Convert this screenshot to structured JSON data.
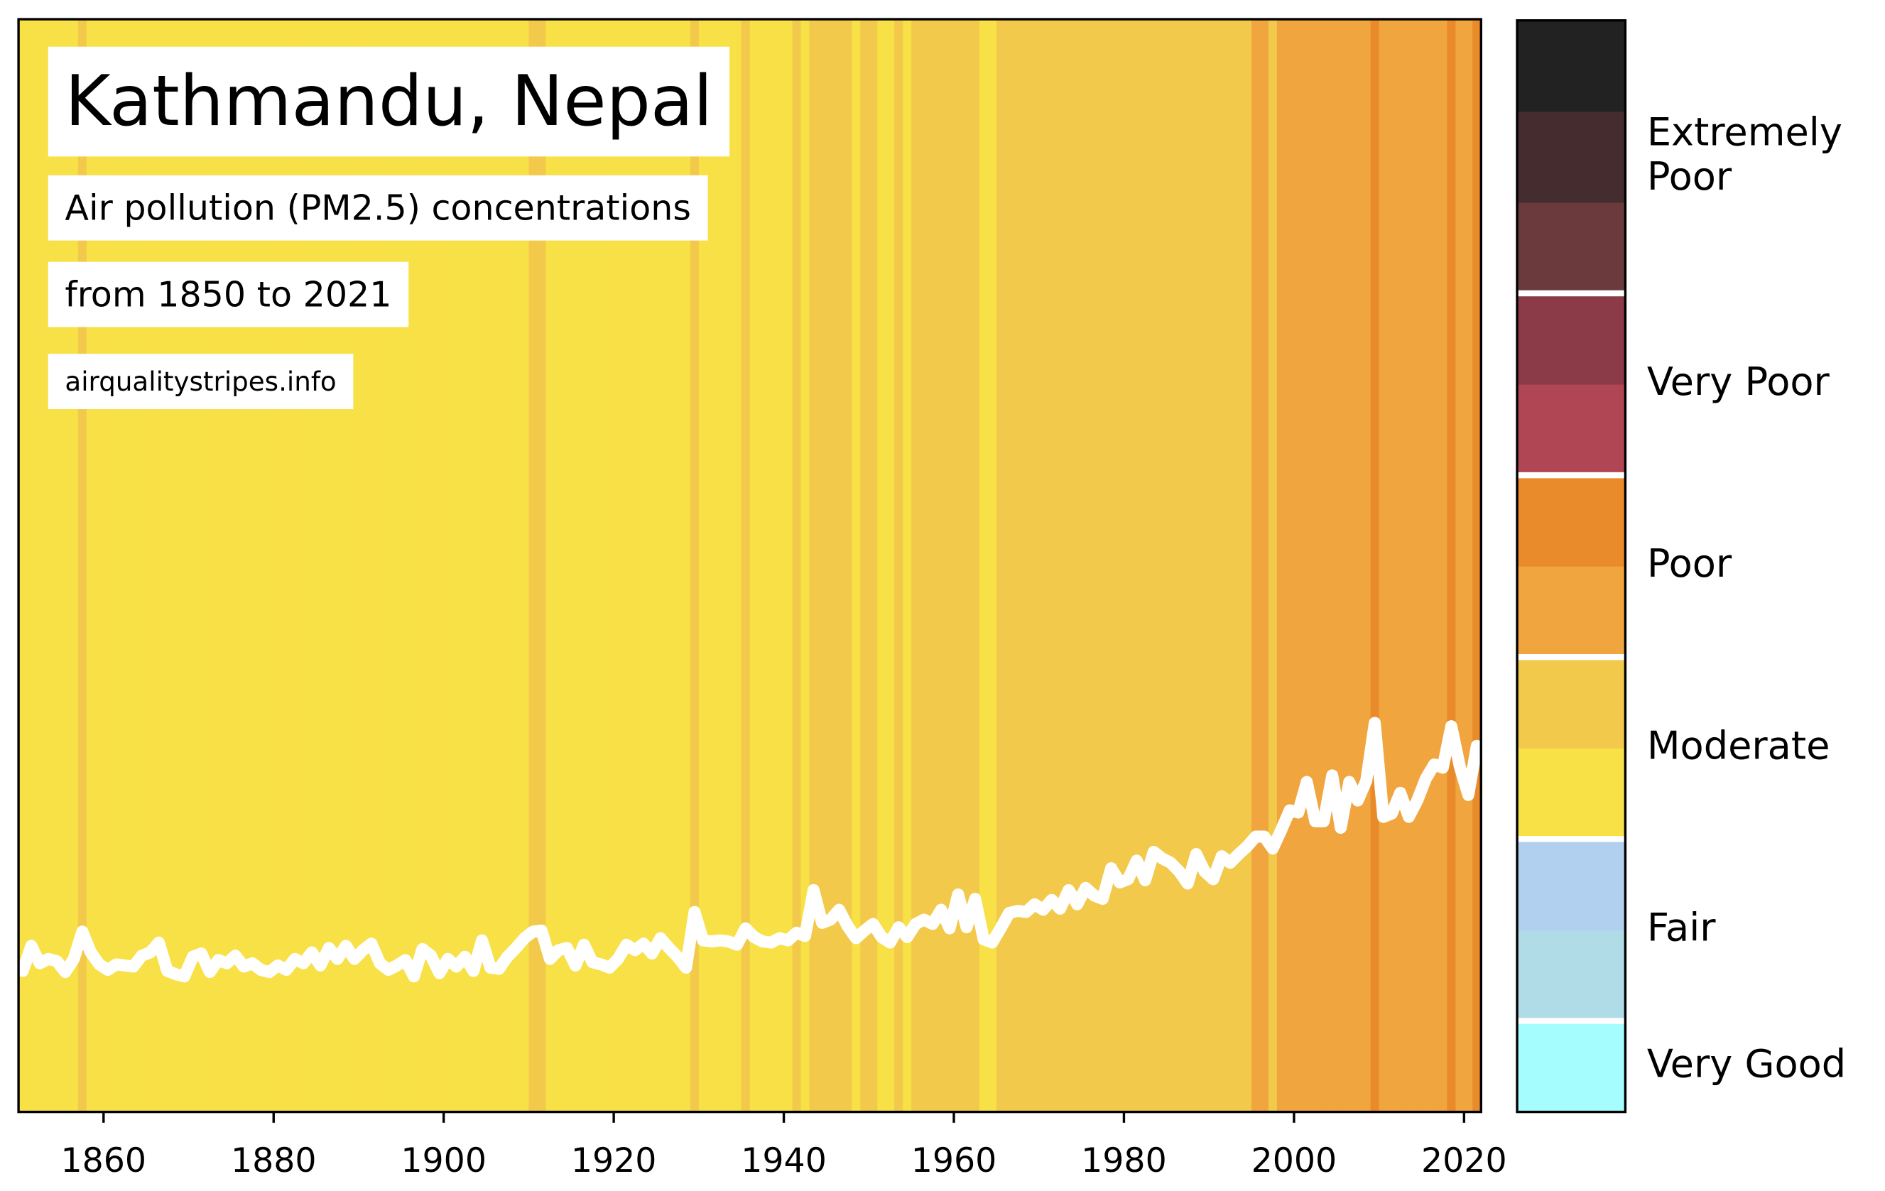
{
  "chart_data": {
    "type": "stripes",
    "title": "Kathmandu, Nepal",
    "subtitle": "Air pollution (PM2.5) concentrations",
    "period": "from 1850 to 2021",
    "source": "airqualitystripes.info",
    "x": [
      1850,
      1851,
      1852,
      1853,
      1854,
      1855,
      1856,
      1857,
      1858,
      1859,
      1860,
      1861,
      1862,
      1863,
      1864,
      1865,
      1866,
      1867,
      1868,
      1869,
      1870,
      1871,
      1872,
      1873,
      1874,
      1875,
      1876,
      1877,
      1878,
      1879,
      1880,
      1881,
      1882,
      1883,
      1884,
      1885,
      1886,
      1887,
      1888,
      1889,
      1890,
      1891,
      1892,
      1893,
      1894,
      1895,
      1896,
      1897,
      1898,
      1899,
      1900,
      1901,
      1902,
      1903,
      1904,
      1905,
      1906,
      1907,
      1908,
      1909,
      1910,
      1911,
      1912,
      1913,
      1914,
      1915,
      1916,
      1917,
      1918,
      1919,
      1920,
      1921,
      1922,
      1923,
      1924,
      1925,
      1926,
      1927,
      1928,
      1929,
      1930,
      1931,
      1932,
      1933,
      1934,
      1935,
      1936,
      1937,
      1938,
      1939,
      1940,
      1941,
      1942,
      1943,
      1944,
      1945,
      1946,
      1947,
      1948,
      1949,
      1950,
      1951,
      1952,
      1953,
      1954,
      1955,
      1956,
      1957,
      1958,
      1959,
      1960,
      1961,
      1962,
      1963,
      1964,
      1965,
      1966,
      1967,
      1968,
      1969,
      1970,
      1971,
      1972,
      1973,
      1974,
      1975,
      1976,
      1977,
      1978,
      1979,
      1980,
      1981,
      1982,
      1983,
      1984,
      1985,
      1986,
      1987,
      1988,
      1989,
      1990,
      1991,
      1992,
      1993,
      1994,
      1995,
      1996,
      1997,
      1998,
      1999,
      2000,
      2001,
      2002,
      2003,
      2004,
      2005,
      2006,
      2007,
      2008,
      2009,
      2010,
      2011,
      2012,
      2013,
      2014,
      2015,
      2016,
      2017,
      2018,
      2019,
      2020,
      2021
    ],
    "values": [
      12.9,
      15.2,
      13.6,
      14.0,
      13.8,
      12.8,
      14.0,
      16.5,
      14.6,
      13.5,
      13.0,
      13.5,
      13.4,
      13.3,
      14.3,
      14.6,
      15.5,
      12.9,
      12.6,
      12.4,
      14.2,
      14.5,
      12.8,
      13.9,
      13.6,
      14.3,
      13.3,
      13.6,
      13.0,
      12.8,
      13.4,
      13.0,
      14.0,
      13.6,
      14.6,
      13.4,
      15.0,
      14.0,
      15.2,
      14.0,
      14.8,
      15.4,
      13.6,
      13.0,
      13.4,
      13.9,
      12.4,
      14.9,
      14.3,
      12.7,
      14.0,
      13.3,
      14.2,
      12.9,
      15.7,
      13.2,
      13.1,
      14.2,
      15.0,
      15.9,
      16.5,
      16.6,
      14.0,
      14.8,
      15.0,
      13.4,
      15.3,
      13.7,
      13.5,
      13.2,
      14.0,
      15.3,
      14.8,
      15.4,
      14.5,
      15.9,
      15.0,
      14.2,
      13.2,
      18.3,
      15.7,
      15.6,
      15.7,
      15.6,
      15.3,
      16.8,
      16.0,
      15.6,
      15.5,
      15.9,
      15.7,
      16.4,
      16.1,
      20.3,
      17.3,
      17.6,
      18.5,
      17.0,
      15.9,
      16.6,
      17.2,
      16.0,
      15.5,
      16.9,
      16.0,
      17.2,
      17.6,
      17.2,
      18.5,
      16.8,
      19.9,
      16.9,
      19.5,
      15.8,
      15.5,
      16.8,
      18.2,
      18.4,
      18.3,
      19.0,
      18.5,
      19.4,
      18.6,
      20.3,
      19.0,
      20.5,
      19.8,
      19.5,
      22.3,
      21.0,
      21.3,
      23.0,
      21.2,
      23.8,
      23.2,
      22.8,
      22.0,
      20.9,
      23.6,
      22.0,
      21.3,
      23.4,
      22.8,
      23.6,
      24.3,
      25.2,
      25.2,
      24.1,
      25.8,
      27.6,
      27.4,
      30.2,
      26.6,
      26.6,
      30.8,
      26.0,
      30.2,
      28.5,
      30.3,
      35.6,
      27.0,
      27.3,
      29.2,
      27.0,
      28.5,
      30.5,
      31.8,
      31.5,
      35.3,
      31.6,
      29.0,
      33.5
    ],
    "line_color": "#ffffff",
    "stripe_thresholds": [
      16.3,
      24.5,
      32
    ],
    "stripe_colors": [
      "#f8e047",
      "#f2c94a",
      "#f0a53e",
      "#e98b2a"
    ],
    "xlim": [
      1850,
      2022
    ],
    "xticks": [
      1860,
      1880,
      1900,
      1920,
      1940,
      1960,
      1980,
      2000,
      2020
    ],
    "ylim": [
      0,
      100
    ],
    "colorbar": {
      "bands": [
        "#a6fdfe",
        "#b0dce8",
        "#b1cfee",
        "#f8e047",
        "#f2c94a",
        "#f0a53e",
        "#e98b2a",
        "#b04653",
        "#8b3a47",
        "#6b3a3c",
        "#452d2f",
        "#222222"
      ],
      "categories": [
        {
          "label": [
            "Very Good"
          ],
          "bands": 1
        },
        {
          "label": [
            "Fair"
          ],
          "bands": 2
        },
        {
          "label": [
            "Moderate"
          ],
          "bands": 2
        },
        {
          "label": [
            "Poor"
          ],
          "bands": 2
        },
        {
          "label": [
            "Very Poor"
          ],
          "bands": 2
        },
        {
          "label": [
            "Extremely",
            "Poor"
          ],
          "bands": 3
        }
      ]
    }
  }
}
